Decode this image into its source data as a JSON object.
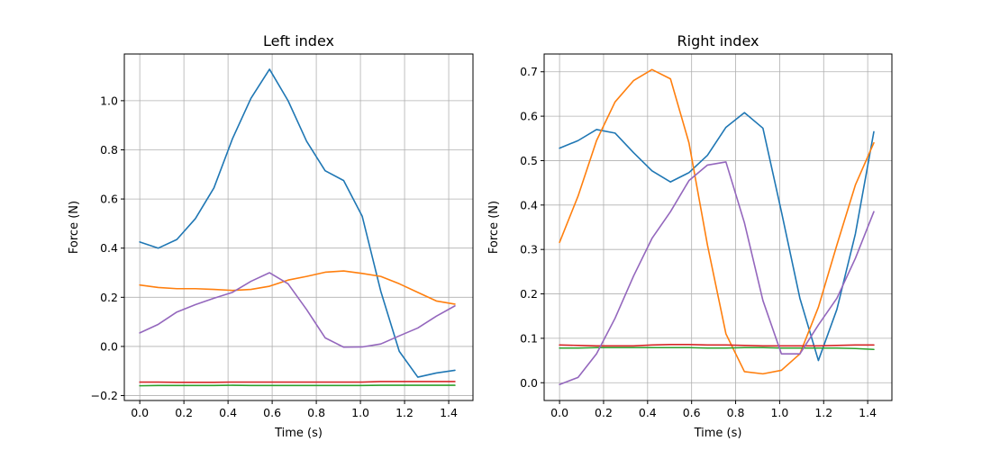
{
  "chart_data": [
    {
      "type": "line",
      "title": "Left index",
      "xlabel": "Time (s)",
      "ylabel": "Force (N)",
      "xlim": [
        -0.07,
        1.51
      ],
      "ylim": [
        -0.22,
        1.19
      ],
      "xticks": [
        0.0,
        0.2,
        0.4,
        0.6,
        0.8,
        1.0,
        1.2,
        1.4
      ],
      "xtick_labels": [
        "0.0",
        "0.2",
        "0.4",
        "0.6",
        "0.8",
        "1.0",
        "1.2",
        "1.4"
      ],
      "yticks": [
        -0.2,
        0.0,
        0.2,
        0.4,
        0.6,
        0.8,
        1.0
      ],
      "ytick_labels": [
        "−0.2",
        "0.0",
        "0.2",
        "0.4",
        "0.6",
        "0.8",
        "1.0"
      ],
      "grid": true,
      "x": [
        0.0,
        0.084,
        0.168,
        0.252,
        0.336,
        0.42,
        0.504,
        0.588,
        0.672,
        0.756,
        0.84,
        0.924,
        1.008,
        1.092,
        1.176,
        1.26,
        1.344,
        1.428
      ],
      "series": [
        {
          "color": "#1f77b4",
          "values": [
            0.425,
            0.4,
            0.435,
            0.52,
            0.645,
            0.845,
            1.01,
            1.128,
            1.0,
            0.835,
            0.715,
            0.675,
            0.53,
            0.225,
            -0.02,
            -0.125,
            -0.108,
            -0.097
          ]
        },
        {
          "color": "#ff7f0e",
          "values": [
            0.25,
            0.24,
            0.235,
            0.235,
            0.232,
            0.228,
            0.232,
            0.245,
            0.27,
            0.285,
            0.302,
            0.307,
            0.297,
            0.285,
            0.255,
            0.22,
            0.185,
            0.172
          ]
        },
        {
          "color": "#2ca02c",
          "values": [
            -0.16,
            -0.159,
            -0.159,
            -0.159,
            -0.159,
            -0.158,
            -0.159,
            -0.159,
            -0.159,
            -0.159,
            -0.159,
            -0.159,
            -0.159,
            -0.158,
            -0.158,
            -0.158,
            -0.158,
            -0.158
          ]
        },
        {
          "color": "#d62728",
          "values": [
            -0.145,
            -0.145,
            -0.146,
            -0.146,
            -0.146,
            -0.145,
            -0.145,
            -0.145,
            -0.145,
            -0.145,
            -0.145,
            -0.145,
            -0.145,
            -0.143,
            -0.143,
            -0.143,
            -0.143,
            -0.143
          ]
        },
        {
          "color": "#9467bd",
          "values": [
            0.055,
            0.09,
            0.14,
            0.17,
            0.196,
            0.22,
            0.265,
            0.3,
            0.255,
            0.15,
            0.035,
            -0.003,
            -0.002,
            0.01,
            0.043,
            0.075,
            0.123,
            0.165
          ]
        }
      ]
    },
    {
      "type": "line",
      "title": "Right index",
      "xlabel": "Time (s)",
      "ylabel": "Force (N)",
      "xlim": [
        -0.07,
        1.51
      ],
      "ylim": [
        -0.04,
        0.74
      ],
      "xticks": [
        0.0,
        0.2,
        0.4,
        0.6,
        0.8,
        1.0,
        1.2,
        1.4
      ],
      "xtick_labels": [
        "0.0",
        "0.2",
        "0.4",
        "0.6",
        "0.8",
        "1.0",
        "1.2",
        "1.4"
      ],
      "yticks": [
        0.0,
        0.1,
        0.2,
        0.3,
        0.4,
        0.5,
        0.6,
        0.7
      ],
      "ytick_labels": [
        "0.0",
        "0.1",
        "0.2",
        "0.3",
        "0.4",
        "0.5",
        "0.6",
        "0.7"
      ],
      "grid": true,
      "x": [
        0.0,
        0.084,
        0.168,
        0.252,
        0.336,
        0.42,
        0.504,
        0.588,
        0.672,
        0.756,
        0.84,
        0.924,
        1.008,
        1.092,
        1.176,
        1.26,
        1.344,
        1.428
      ],
      "series": [
        {
          "color": "#1f77b4",
          "values": [
            0.528,
            0.545,
            0.57,
            0.562,
            0.518,
            0.477,
            0.452,
            0.473,
            0.512,
            0.575,
            0.608,
            0.573,
            0.385,
            0.19,
            0.05,
            0.165,
            0.335,
            0.565
          ]
        },
        {
          "color": "#ff7f0e",
          "values": [
            0.316,
            0.42,
            0.545,
            0.632,
            0.68,
            0.705,
            0.684,
            0.54,
            0.31,
            0.11,
            0.025,
            0.02,
            0.028,
            0.065,
            0.17,
            0.31,
            0.445,
            0.54
          ]
        },
        {
          "color": "#2ca02c",
          "values": [
            0.078,
            0.078,
            0.079,
            0.079,
            0.079,
            0.079,
            0.079,
            0.079,
            0.078,
            0.078,
            0.079,
            0.079,
            0.078,
            0.078,
            0.078,
            0.078,
            0.077,
            0.075
          ]
        },
        {
          "color": "#d62728",
          "values": [
            0.085,
            0.084,
            0.083,
            0.083,
            0.083,
            0.085,
            0.086,
            0.086,
            0.085,
            0.085,
            0.084,
            0.083,
            0.083,
            0.083,
            0.083,
            0.084,
            0.085,
            0.085
          ]
        },
        {
          "color": "#9467bd",
          "values": [
            -0.004,
            0.012,
            0.065,
            0.145,
            0.24,
            0.325,
            0.385,
            0.455,
            0.49,
            0.497,
            0.36,
            0.185,
            0.065,
            0.065,
            0.13,
            0.19,
            0.28,
            0.385
          ]
        }
      ]
    }
  ]
}
